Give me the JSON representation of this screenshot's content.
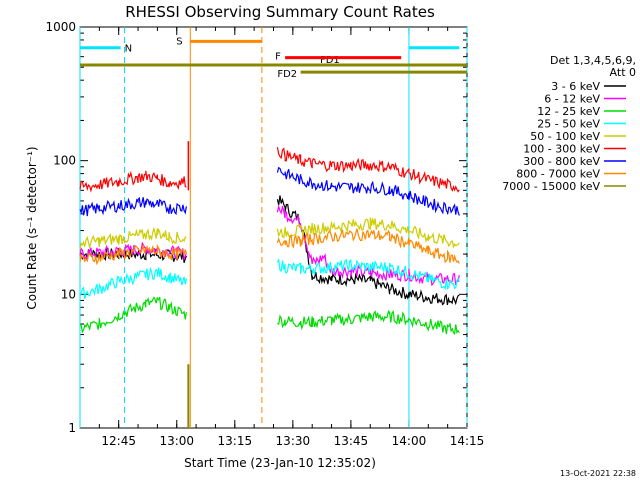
{
  "chart_data": {
    "type": "line",
    "title": "RHESSI Observing Summary Count Rates",
    "xlabel": "Start Time (23-Jan-10 12:35:02)",
    "ylabel": "Count Rate (s⁻¹ detector⁻¹)",
    "y_scale": "log",
    "xlim_min": [
      35,
      135
    ],
    "ylim": [
      1,
      1000
    ],
    "x_ticks": [
      {
        "min": 45,
        "label": "12:45"
      },
      {
        "min": 60,
        "label": "13:00"
      },
      {
        "min": 75,
        "label": "13:15"
      },
      {
        "min": 90,
        "label": "13:30"
      },
      {
        "min": 105,
        "label": "13:45"
      },
      {
        "min": 120,
        "label": "14:00"
      },
      {
        "min": 135,
        "label": "14:15"
      }
    ],
    "y_ticks": [
      {
        "value": 1,
        "label": "1"
      },
      {
        "value": 10,
        "label": "10"
      },
      {
        "value": 100,
        "label": "100"
      },
      {
        "value": 1000,
        "label": "1000"
      }
    ],
    "legend": {
      "header": [
        "Det 1,3,4,5,6,9,",
        "Att 0"
      ],
      "position": "right"
    },
    "series": [
      {
        "name": "3 - 6 keV",
        "color": "#000000",
        "x": [
          35,
          45,
          52,
          58,
          62.5,
          63.5,
          64.5,
          85.5,
          86,
          88,
          90,
          92,
          95,
          100,
          105,
          110,
          115,
          120,
          125,
          133
        ],
        "y": [
          20,
          20,
          20,
          19.5,
          19,
          0,
          0,
          0,
          52,
          45,
          40,
          36,
          14,
          13,
          13,
          12.5,
          11,
          10,
          9.5,
          9
        ]
      },
      {
        "name": "6 - 12 keV",
        "color": "#ff00ff",
        "x": [
          35,
          45,
          52,
          58,
          62.5,
          63.5,
          64.5,
          85.5,
          86,
          88,
          92,
          95,
          98,
          100,
          105,
          110,
          115,
          120,
          125,
          133
        ],
        "y": [
          20,
          21,
          22,
          21,
          20,
          0,
          0,
          0,
          45,
          40,
          35,
          17,
          19,
          15,
          15,
          14.5,
          14,
          14,
          13,
          13
        ]
      },
      {
        "name": "12 - 25 keV",
        "color": "#00dd00",
        "x": [
          35,
          40,
          45,
          52,
          55,
          58,
          62.5,
          63.5,
          64.5,
          85.5,
          86,
          88,
          92,
          95,
          100,
          105,
          110,
          115,
          120,
          125,
          130,
          133
        ],
        "y": [
          5.5,
          6,
          7,
          8.5,
          8.8,
          8,
          7,
          0,
          0,
          0,
          6.5,
          6.3,
          6.2,
          6.2,
          6.4,
          6.5,
          6.8,
          6.8,
          6.5,
          6,
          5.5,
          5.5
        ]
      },
      {
        "name": "25 - 50 keV",
        "color": "#00ffff",
        "x": [
          35,
          40,
          45,
          52,
          55,
          58,
          62.5,
          63.5,
          64.5,
          85.5,
          86,
          88,
          92,
          95,
          100,
          105,
          110,
          115,
          120,
          125,
          130,
          133
        ],
        "y": [
          10,
          11,
          12.5,
          14,
          14.5,
          13.5,
          12,
          0,
          0,
          0,
          17,
          16,
          15.5,
          15.5,
          16,
          16.5,
          16,
          16,
          14.5,
          13,
          12,
          12
        ]
      },
      {
        "name": "50 - 100 keV",
        "color": "#cccc00",
        "x": [
          35,
          40,
          45,
          52,
          55,
          58,
          62.5,
          63.5,
          64.5,
          85.5,
          86,
          88,
          92,
          95,
          100,
          105,
          110,
          115,
          120,
          125,
          130,
          133
        ],
        "y": [
          24,
          25,
          26,
          28,
          29,
          27,
          26,
          0,
          0,
          0,
          30,
          29,
          30,
          31,
          32,
          33,
          34,
          33,
          30,
          27,
          25,
          24
        ]
      },
      {
        "name": "100 - 300 keV",
        "color": "#ff0000",
        "x": [
          35,
          40,
          45,
          50,
          52,
          55,
          58,
          62.5,
          63.5,
          64.5,
          85.5,
          86,
          88,
          92,
          95,
          100,
          105,
          110,
          115,
          120,
          125,
          130,
          133
        ],
        "y": [
          63,
          66,
          70,
          75,
          77,
          74,
          68,
          70,
          0,
          0,
          0,
          120,
          110,
          100,
          95,
          92,
          92,
          93,
          90,
          80,
          72,
          66,
          64
        ]
      },
      {
        "name": "300 - 800 keV",
        "color": "#0000ff",
        "x": [
          35,
          40,
          45,
          50,
          52,
          55,
          58,
          62.5,
          63.5,
          64.5,
          85.5,
          86,
          88,
          92,
          95,
          100,
          105,
          110,
          115,
          120,
          125,
          130,
          133
        ],
        "y": [
          42,
          44,
          46,
          48,
          49,
          47,
          44,
          45,
          0,
          0,
          0,
          88,
          80,
          72,
          68,
          64,
          63,
          63,
          61,
          55,
          48,
          44,
          43
        ]
      },
      {
        "name": "800 - 7000 keV",
        "color": "#ff8800",
        "x": [
          35,
          40,
          45,
          50,
          52,
          55,
          58,
          62.5,
          63.5,
          64.5,
          85.5,
          86,
          88,
          92,
          95,
          100,
          105,
          110,
          115,
          120,
          125,
          130,
          133
        ],
        "y": [
          18,
          19,
          20,
          21,
          21.5,
          21,
          20,
          20,
          0,
          0,
          0,
          26,
          25,
          25,
          26,
          27,
          28,
          28,
          27,
          24,
          21,
          19,
          18
        ]
      },
      {
        "name": "7000 - 15000 keV",
        "color": "#888800",
        "x": [],
        "y": []
      }
    ],
    "annotations": {
      "night_bars": [
        {
          "label": "N",
          "x0": 35,
          "x1": 45.5,
          "level": 700
        },
        {
          "label": "",
          "x0": 120,
          "x1": 133,
          "level": 700
        }
      ],
      "saa_bar": {
        "label": "S",
        "x0": 63.5,
        "x1": 82,
        "level": 780
      },
      "flare_bar": {
        "label": "F",
        "x0": 88,
        "x1": 118,
        "level": 590
      },
      "fd_bars": [
        {
          "label": "FD1",
          "x0": 35,
          "x1": 135,
          "level": 520
        },
        {
          "label": "FD2",
          "x0": 92,
          "x1": 135,
          "level": 460
        }
      ],
      "cyan_dashed_lines": [
        46.5,
        135
      ],
      "cyan_solid_lines": [
        35,
        120
      ],
      "orange_dashed_line": 82,
      "orange_solid_line": 63.5
    }
  },
  "timestamp": "13-Oct-2021 22:38"
}
